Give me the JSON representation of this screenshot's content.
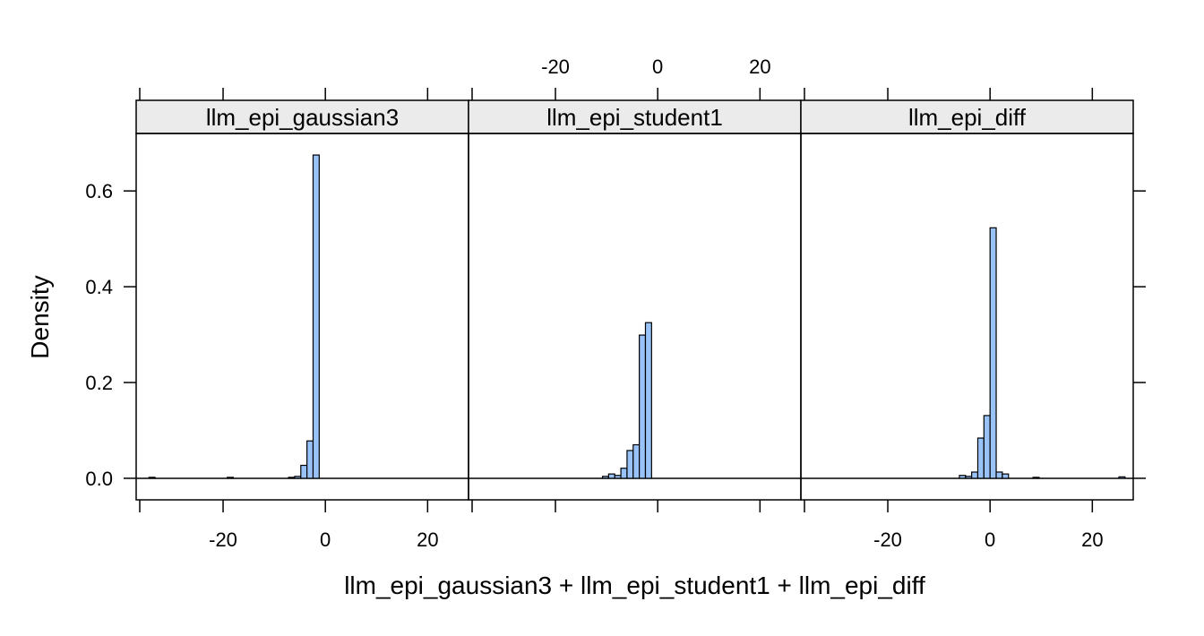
{
  "chart_data": {
    "type": "histogram",
    "panel_layout": "lattice, 3 panels in one row, shared axes",
    "xlabel": "llm_epi_gaussian3 + llm_epi_student1 + llm_epi_diff",
    "ylabel": "Density",
    "xlim": [
      -37,
      28
    ],
    "ylim": [
      -0.045,
      0.72
    ],
    "x_ticks": [
      -20,
      0,
      20
    ],
    "x_tick_labels": [
      "-20",
      "0",
      "20"
    ],
    "y_ticks": [
      0.0,
      0.2,
      0.4,
      0.6
    ],
    "y_tick_labels": [
      "0.0",
      "0.2",
      "0.4",
      "0.6"
    ],
    "bin_width": 1.2,
    "colors": {
      "bar_fill": "#99c3f8",
      "bar_stroke": "#000000",
      "strip_bg": "#ebebeb",
      "axis": "#000000"
    },
    "panels": [
      {
        "name": "llm_epi_gaussian3",
        "line_range": [
          -37,
          28
        ],
        "bins": [
          {
            "x": -34.5,
            "density": 0.002
          },
          {
            "x": -19.2,
            "density": 0.002
          },
          {
            "x": -7.2,
            "density": 0.002
          },
          {
            "x": -6.0,
            "density": 0.004
          },
          {
            "x": -4.8,
            "density": 0.027
          },
          {
            "x": -3.6,
            "density": 0.078
          },
          {
            "x": -2.4,
            "density": 0.675
          }
        ]
      },
      {
        "name": "llm_epi_student1",
        "line_range": [
          -37,
          28
        ],
        "bins": [
          {
            "x": -10.8,
            "density": 0.004
          },
          {
            "x": -9.6,
            "density": 0.009
          },
          {
            "x": -8.4,
            "density": 0.006
          },
          {
            "x": -7.2,
            "density": 0.021
          },
          {
            "x": -6.0,
            "density": 0.058
          },
          {
            "x": -4.8,
            "density": 0.07
          },
          {
            "x": -3.6,
            "density": 0.299
          },
          {
            "x": -2.4,
            "density": 0.325
          }
        ]
      },
      {
        "name": "llm_epi_diff",
        "line_range": [
          -37,
          28
        ],
        "bins": [
          {
            "x": -6.0,
            "density": 0.006
          },
          {
            "x": -4.8,
            "density": 0.004
          },
          {
            "x": -3.6,
            "density": 0.013
          },
          {
            "x": -2.4,
            "density": 0.084
          },
          {
            "x": -1.2,
            "density": 0.131
          },
          {
            "x": 0.0,
            "density": 0.523
          },
          {
            "x": 1.2,
            "density": 0.013
          },
          {
            "x": 2.4,
            "density": 0.009
          },
          {
            "x": 8.4,
            "density": 0.002
          },
          {
            "x": 25.2,
            "density": 0.003
          }
        ]
      }
    ]
  }
}
